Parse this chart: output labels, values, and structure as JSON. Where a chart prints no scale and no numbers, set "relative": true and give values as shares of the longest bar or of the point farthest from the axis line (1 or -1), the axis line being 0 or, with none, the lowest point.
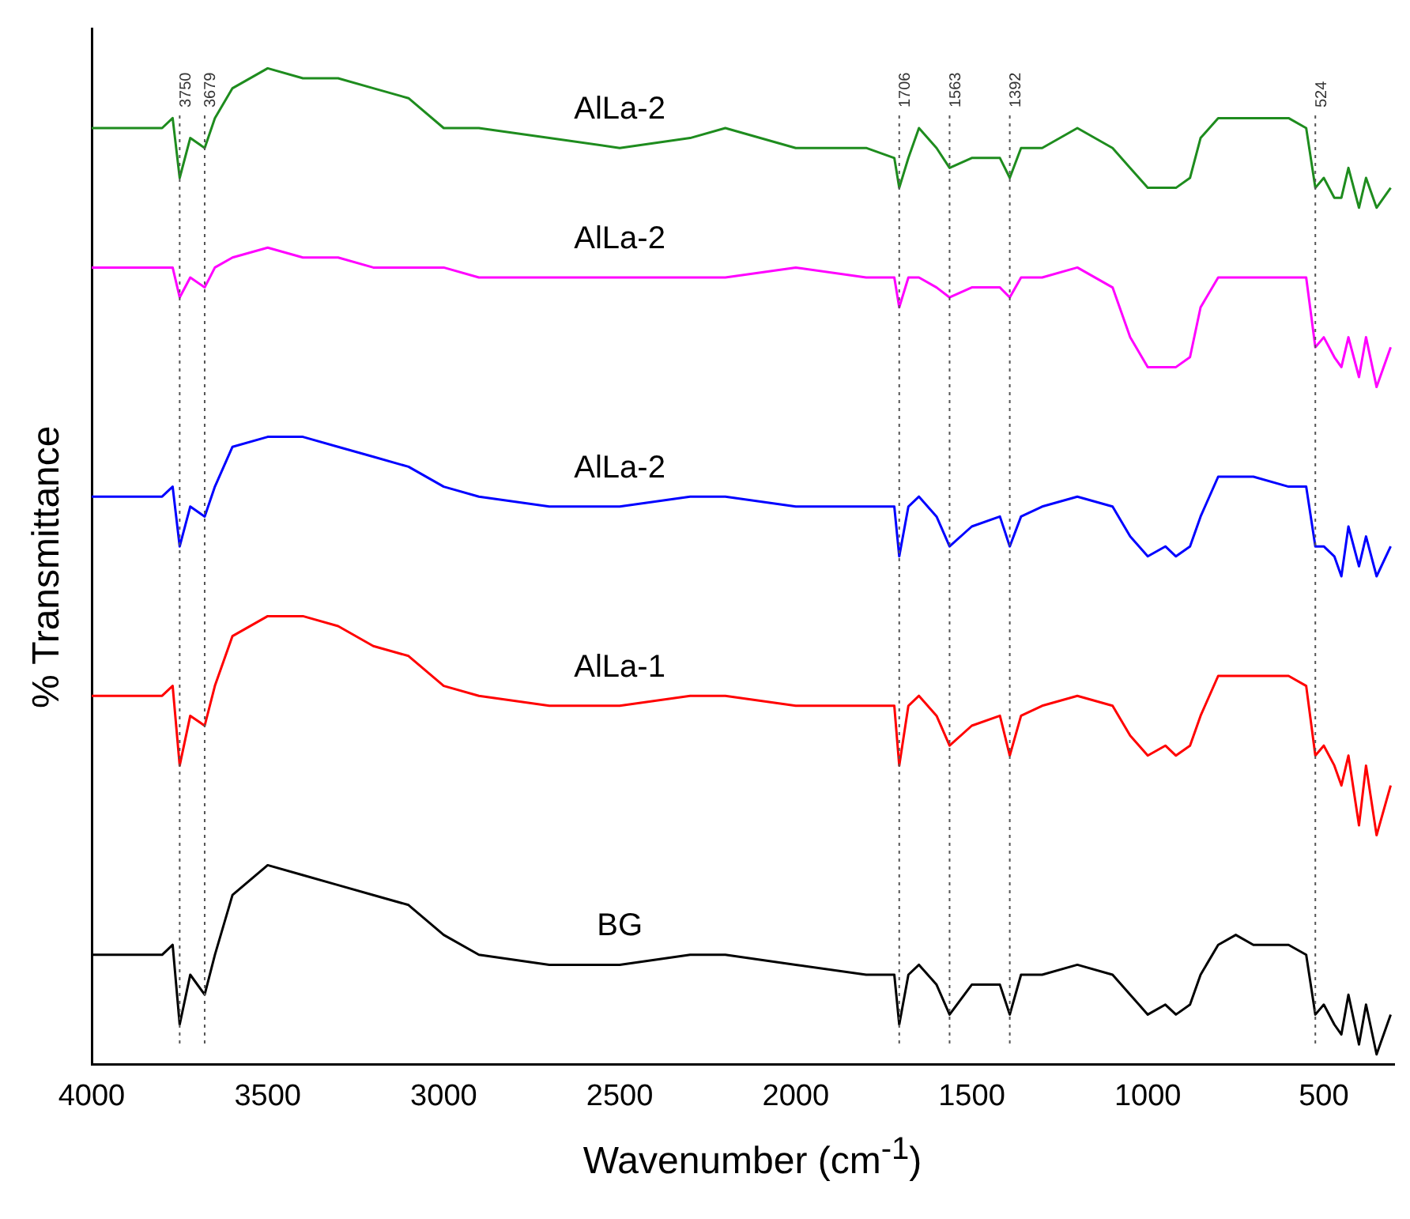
{
  "chart_data": {
    "type": "line",
    "xlabel": "Wavenumber (cm$^{-1}$)",
    "ylabel": "% Transmittance",
    "relative": true,
    "x": [
      4000,
      3900,
      3800,
      3770,
      3750,
      3720,
      3679,
      3650,
      3600,
      3500,
      3400,
      3300,
      3200,
      3100,
      3000,
      2900,
      2700,
      2500,
      2300,
      2200,
      2000,
      1800,
      1720,
      1706,
      1680,
      1650,
      1600,
      1563,
      1500,
      1420,
      1392,
      1360,
      1300,
      1200,
      1100,
      1050,
      1000,
      950,
      920,
      880,
      850,
      800,
      750,
      700,
      600,
      550,
      524,
      500,
      470,
      450,
      430,
      400,
      380,
      350,
      310
    ],
    "series": [
      {
        "name": "AlLa-2",
        "color": "#1e8c1e",
        "values": [
          0.94,
          0.94,
          0.94,
          0.95,
          0.89,
          0.93,
          0.92,
          0.95,
          0.98,
          1,
          0.99,
          0.99,
          0.98,
          0.97,
          0.94,
          0.94,
          0.93,
          0.92,
          0.93,
          0.94,
          0.92,
          0.92,
          0.91,
          0.88,
          0.91,
          0.94,
          0.92,
          0.9,
          0.91,
          0.91,
          0.89,
          0.92,
          0.92,
          0.94,
          0.92,
          0.9,
          0.88,
          0.88,
          0.88,
          0.89,
          0.93,
          0.95,
          0.95,
          0.95,
          0.95,
          0.94,
          0.88,
          0.89,
          0.87,
          0.87,
          0.9,
          0.86,
          0.89,
          0.86,
          0.88
        ]
      },
      {
        "name": "AlLa-2",
        "color": "#ff00ff",
        "values": [
          0.8,
          0.8,
          0.8,
          0.8,
          0.77,
          0.79,
          0.78,
          0.8,
          0.81,
          0.82,
          0.81,
          0.81,
          0.8,
          0.8,
          0.8,
          0.79,
          0.79,
          0.79,
          0.79,
          0.79,
          0.8,
          0.79,
          0.79,
          0.76,
          0.79,
          0.79,
          0.78,
          0.77,
          0.78,
          0.78,
          0.77,
          0.79,
          0.79,
          0.8,
          0.78,
          0.73,
          0.7,
          0.7,
          0.7,
          0.71,
          0.76,
          0.79,
          0.79,
          0.79,
          0.79,
          0.79,
          0.72,
          0.73,
          0.71,
          0.7,
          0.73,
          0.69,
          0.73,
          0.68,
          0.72
        ]
      },
      {
        "name": "AlLa-2",
        "color": "#0000ff",
        "values": [
          0.57,
          0.57,
          0.57,
          0.58,
          0.52,
          0.56,
          0.55,
          0.58,
          0.62,
          0.63,
          0.63,
          0.62,
          0.61,
          0.6,
          0.58,
          0.57,
          0.56,
          0.56,
          0.57,
          0.57,
          0.56,
          0.56,
          0.56,
          0.51,
          0.56,
          0.57,
          0.55,
          0.52,
          0.54,
          0.55,
          0.52,
          0.55,
          0.56,
          0.57,
          0.56,
          0.53,
          0.51,
          0.52,
          0.51,
          0.52,
          0.55,
          0.59,
          0.59,
          0.59,
          0.58,
          0.58,
          0.52,
          0.52,
          0.51,
          0.49,
          0.54,
          0.5,
          0.53,
          0.49,
          0.52
        ]
      },
      {
        "name": "AlLa-1",
        "color": "#ff0000",
        "values": [
          0.37,
          0.37,
          0.37,
          0.38,
          0.3,
          0.35,
          0.34,
          0.38,
          0.43,
          0.45,
          0.45,
          0.44,
          0.42,
          0.41,
          0.38,
          0.37,
          0.36,
          0.36,
          0.37,
          0.37,
          0.36,
          0.36,
          0.36,
          0.3,
          0.36,
          0.37,
          0.35,
          0.32,
          0.34,
          0.35,
          0.31,
          0.35,
          0.36,
          0.37,
          0.36,
          0.33,
          0.31,
          0.32,
          0.31,
          0.32,
          0.35,
          0.39,
          0.39,
          0.39,
          0.39,
          0.38,
          0.31,
          0.32,
          0.3,
          0.28,
          0.31,
          0.24,
          0.3,
          0.23,
          0.28
        ]
      },
      {
        "name": "BG",
        "color": "#000000",
        "values": [
          0.11,
          0.11,
          0.11,
          0.12,
          0.04,
          0.09,
          0.07,
          0.11,
          0.17,
          0.2,
          0.19,
          0.18,
          0.17,
          0.16,
          0.13,
          0.11,
          0.1,
          0.1,
          0.11,
          0.11,
          0.1,
          0.09,
          0.09,
          0.04,
          0.09,
          0.1,
          0.08,
          0.05,
          0.08,
          0.08,
          0.05,
          0.09,
          0.09,
          0.1,
          0.09,
          0.07,
          0.05,
          0.06,
          0.05,
          0.06,
          0.09,
          0.12,
          0.13,
          0.12,
          0.12,
          0.11,
          0.05,
          0.06,
          0.04,
          0.03,
          0.07,
          0.02,
          0.06,
          0.01,
          0.05
        ]
      }
    ],
    "xlim": [
      4000,
      300
    ],
    "xticks": [
      4000,
      3500,
      3000,
      2500,
      2000,
      1500,
      1000,
      500
    ],
    "ref_lines": [
      {
        "axis": "x",
        "value": 3750,
        "label": "3750",
        "color": "#555555",
        "line_style": "dotted"
      },
      {
        "axis": "x",
        "value": 3679,
        "label": "3679",
        "color": "#555555",
        "line_style": "dotted"
      },
      {
        "axis": "x",
        "value": 1706,
        "label": "1706",
        "color": "#555555",
        "line_style": "dotted"
      },
      {
        "axis": "x",
        "value": 1563,
        "label": "1563",
        "color": "#555555",
        "line_style": "dotted"
      },
      {
        "axis": "x",
        "value": 1392,
        "label": "1392",
        "color": "#555555",
        "line_style": "dotted"
      },
      {
        "axis": "x",
        "value": 524,
        "label": "524",
        "color": "#555555",
        "line_style": "dotted"
      }
    ],
    "grid": false,
    "legend": false,
    "marker": "none",
    "line_style": "solid"
  }
}
